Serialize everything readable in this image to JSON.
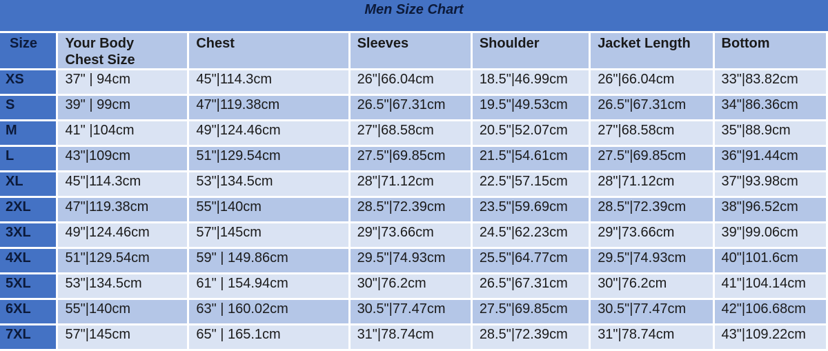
{
  "title": "Men Size Chart",
  "colors": {
    "title_bar": "#4472c4",
    "header": "#b4c6e7",
    "row_light": "#dae3f3",
    "row_dark": "#b4c6e7",
    "size_column": "#4472c4"
  },
  "chart_data": {
    "type": "table",
    "title": "Men Size Chart",
    "columns": [
      "Size",
      "Your Body\nChest Size",
      "Chest",
      "Sleeves",
      "Shoulder",
      "Jacket Length",
      "Bottom"
    ],
    "rows": [
      [
        "XS",
        "37\" | 94cm",
        "45\"|114.3cm",
        "26\"|66.04cm",
        "18.5\"|46.99cm",
        "26\"|66.04cm",
        "33\"|83.82cm"
      ],
      [
        "S",
        "39\" | 99cm",
        "47\"|119.38cm",
        "26.5\"|67.31cm",
        "19.5\"|49.53cm",
        "26.5\"|67.31cm",
        "34\"|86.36cm"
      ],
      [
        "M",
        "41\" |104cm",
        "49\"|124.46cm",
        "27\"|68.58cm",
        "20.5\"|52.07cm",
        "27\"|68.58cm",
        "35\"|88.9cm"
      ],
      [
        "L",
        "43\"|109cm",
        "51\"|129.54cm",
        "27.5\"|69.85cm",
        "21.5\"|54.61cm",
        "27.5\"|69.85cm",
        "36\"|91.44cm"
      ],
      [
        "XL",
        "45\"|114.3cm",
        "53\"|134.5cm",
        "28\"|71.12cm",
        "22.5\"|57.15cm",
        "28\"|71.12cm",
        "37\"|93.98cm"
      ],
      [
        "2XL",
        "47\"|119.38cm",
        "55\"|140cm",
        "28.5\"|72.39cm",
        "23.5\"|59.69cm",
        "28.5\"|72.39cm",
        "38\"|96.52cm"
      ],
      [
        "3XL",
        "49\"|124.46cm",
        "57\"|145cm",
        "29\"|73.66cm",
        "24.5\"|62.23cm",
        "29\"|73.66cm",
        "39\"|99.06cm"
      ],
      [
        "4XL",
        "51\"|129.54cm",
        "59\" | 149.86cm",
        "29.5\"|74.93cm",
        "25.5\"|64.77cm",
        "29.5\"|74.93cm",
        "40\"|101.6cm"
      ],
      [
        "5XL",
        "53\"|134.5cm",
        "61\" | 154.94cm",
        "30\"|76.2cm",
        "26.5\"|67.31cm",
        "30\"|76.2cm",
        "41\"|104.14cm"
      ],
      [
        "6XL",
        "55\"|140cm",
        "63\" | 160.02cm",
        "30.5\"|77.47cm",
        "27.5\"|69.85cm",
        "30.5\"|77.47cm",
        "42\"|106.68cm"
      ],
      [
        "7XL",
        "57\"|145cm",
        "65\" | 165.1cm",
        "31\"|78.74cm",
        "28.5\"|72.39cm",
        "31\"|78.74cm",
        "43\"|109.22cm"
      ]
    ]
  }
}
